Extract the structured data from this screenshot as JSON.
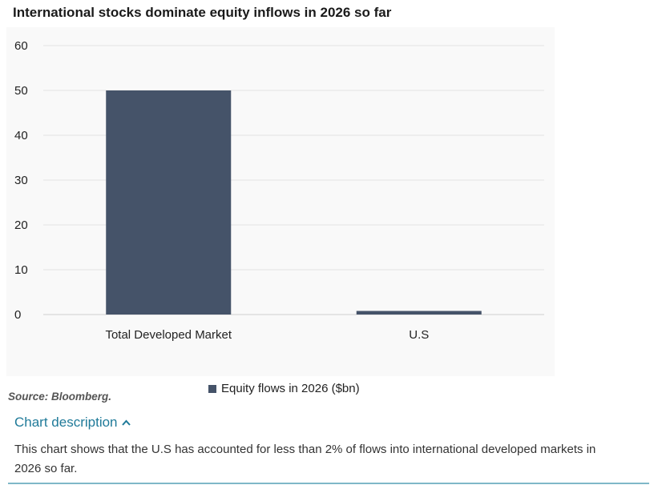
{
  "title": "International stocks dominate equity inflows in 2026 so far",
  "chart_data": {
    "type": "bar",
    "categories": [
      "Total Developed Market",
      "U.S"
    ],
    "series": [
      {
        "name": "Equity flows in 2026 ($bn)",
        "values": [
          50,
          0.8
        ]
      }
    ],
    "ylim": [
      0,
      60
    ],
    "yticks": [
      0,
      10,
      20,
      30,
      40,
      50,
      60
    ],
    "ytick_labels": [
      "0",
      "10",
      "20",
      "30",
      "40",
      "50",
      "60"
    ],
    "xlabel": "",
    "ylabel": "",
    "legend_position": "bottom-center",
    "grid": true,
    "bar_color": "#455369"
  },
  "source": "Source: Bloomberg.",
  "description": {
    "toggle_label": "Chart description",
    "chevron": "^",
    "text": "This chart shows that the U.S has accounted for less than 2% of flows into international developed markets in 2026 so far."
  }
}
